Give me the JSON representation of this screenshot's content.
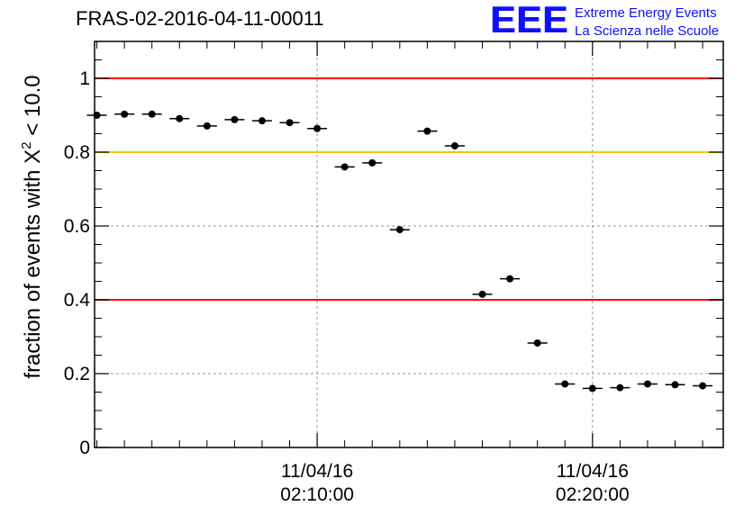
{
  "chart_data": {
    "type": "scatter",
    "title": "FRAS-02-2016-04-11-00011",
    "ylabel_prefix": "fraction of events with ",
    "ylabel_symbol": "X",
    "ylabel_sup": "2",
    "ylabel_suffix": " < 10.0",
    "ylim": [
      0,
      1.1
    ],
    "yticks": [
      "0",
      "0.2",
      "0.4",
      "0.6",
      "0.8",
      "1"
    ],
    "xlim": [
      "02:01:55",
      "02:24:45"
    ],
    "xtick_labels": [
      {
        "date": "11/04/16",
        "time": "02:10:00"
      },
      {
        "date": "11/04/16",
        "time": "02:20:00"
      }
    ],
    "grid": true,
    "reference_lines": [
      {
        "y": 1.0,
        "color": "#ff0000"
      },
      {
        "y": 0.8,
        "color": "#ffc000"
      },
      {
        "y": 0.4,
        "color": "#ff0000"
      }
    ],
    "bin_width_s": 60,
    "x": [
      "02:02:00",
      "02:03:00",
      "02:04:00",
      "02:05:00",
      "02:06:00",
      "02:07:00",
      "02:08:00",
      "02:09:00",
      "02:10:00",
      "02:11:00",
      "02:12:00",
      "02:13:00",
      "02:14:00",
      "02:15:00",
      "02:16:00",
      "02:17:00",
      "02:18:00",
      "02:19:00",
      "02:20:00",
      "02:21:00",
      "02:22:00",
      "02:23:00",
      "02:24:00"
    ],
    "y": [
      0.9,
      0.903,
      0.903,
      0.891,
      0.871,
      0.888,
      0.885,
      0.88,
      0.864,
      0.76,
      0.771,
      0.59,
      0.857,
      0.817,
      0.415,
      0.457,
      0.283,
      0.172,
      0.16,
      0.162,
      0.172,
      0.17,
      0.167
    ]
  },
  "logo": {
    "mark": "EEE",
    "line1": "Extreme Energy Events",
    "line2": "La Scienza nelle Scuole"
  },
  "colors": {
    "axis": "#000000",
    "grid": "#999999",
    "points": "#000000",
    "logo": "#1010ff"
  }
}
